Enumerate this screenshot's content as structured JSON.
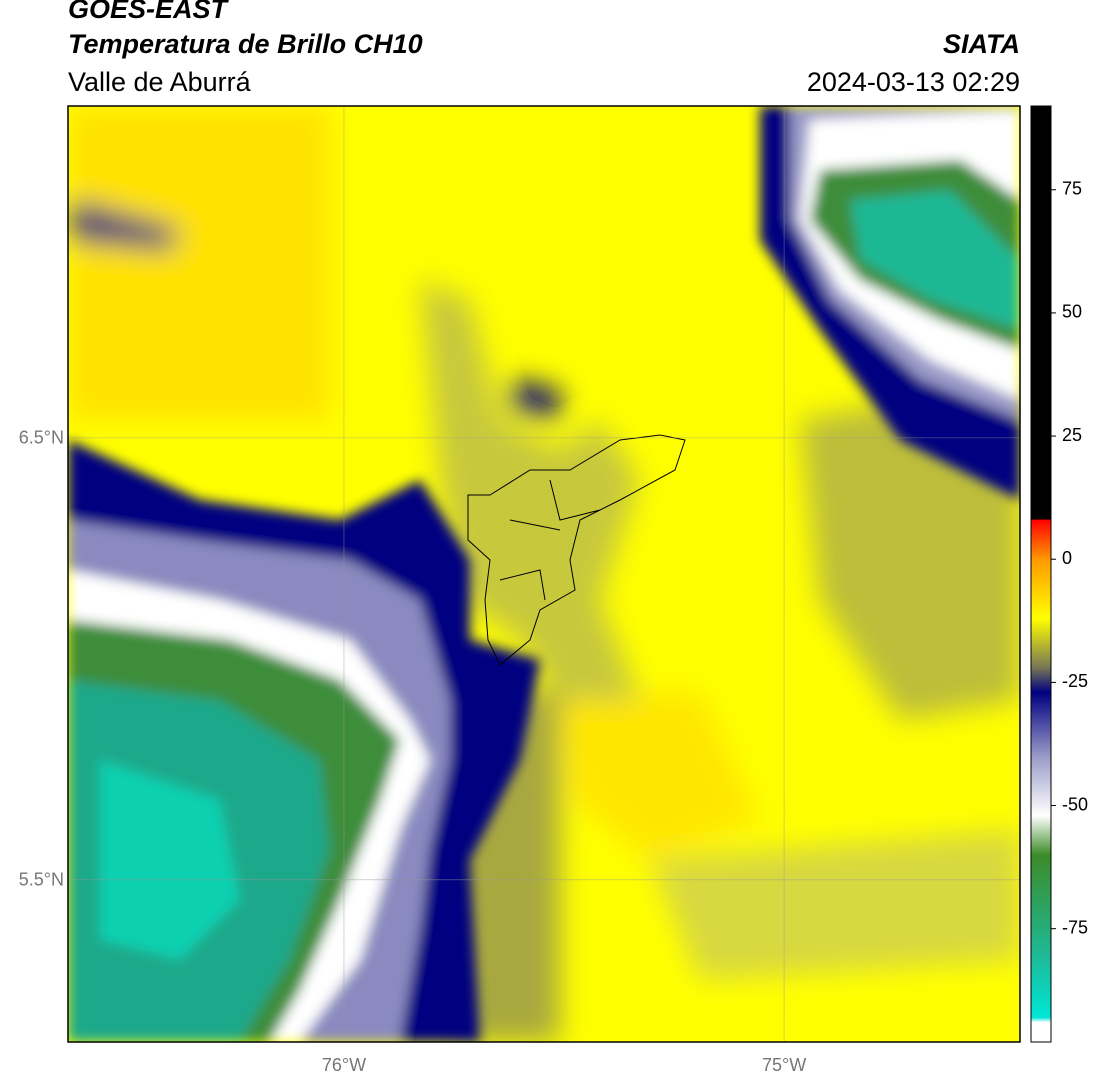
{
  "header": {
    "satellite": "GOES-EAST",
    "product": "Temperatura de Brillo CH10",
    "region": "Valle de Aburrá",
    "agency": "SIATA",
    "datetime": "2024-03-13 02:29"
  },
  "map": {
    "lon_range": [
      -76.627,
      -74.464
    ],
    "lat_range": [
      5.133,
      7.251
    ],
    "lat_ticks": [
      {
        "value": 6.5,
        "label": "6.5°N"
      },
      {
        "value": 5.5,
        "label": "5.5°N"
      }
    ],
    "lon_ticks": [
      {
        "value": -76,
        "label": "76°W"
      },
      {
        "value": -75,
        "label": "75°W"
      }
    ]
  },
  "colorbar": {
    "range": [
      -98,
      92
    ],
    "ticks": [
      75,
      50,
      25,
      0,
      -25,
      -50,
      -75
    ],
    "stops": [
      {
        "value": -98,
        "color": "#ffffff"
      },
      {
        "value": -94,
        "color": "#ffffff"
      },
      {
        "value": -93,
        "color": "#00e6d6"
      },
      {
        "value": -80,
        "color": "#1fb894"
      },
      {
        "value": -60,
        "color": "#3c8c28"
      },
      {
        "value": -52,
        "color": "#ffffff"
      },
      {
        "value": -40,
        "color": "#9a9ac8"
      },
      {
        "value": -27,
        "color": "#000080"
      },
      {
        "value": -22,
        "color": "#777755"
      },
      {
        "value": -12,
        "color": "#ffff00"
      },
      {
        "value": 0,
        "color": "#ff9900"
      },
      {
        "value": 8,
        "color": "#ff0000"
      },
      {
        "value": 8.1,
        "color": "#000000"
      },
      {
        "value": 92,
        "color": "#000000"
      }
    ]
  }
}
